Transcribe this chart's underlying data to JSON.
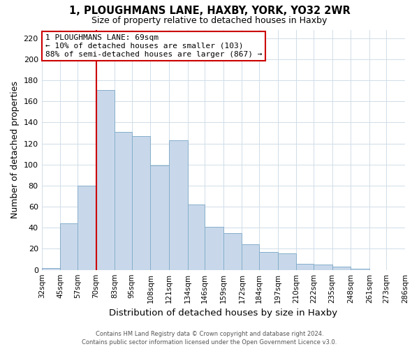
{
  "title": "1, PLOUGHMANS LANE, HAXBY, YORK, YO32 2WR",
  "subtitle": "Size of property relative to detached houses in Haxby",
  "xlabel": "Distribution of detached houses by size in Haxby",
  "ylabel": "Number of detached properties",
  "bar_values": [
    2,
    44,
    80,
    171,
    131,
    127,
    99,
    123,
    62,
    41,
    35,
    24,
    17,
    16,
    6,
    5,
    3,
    1
  ],
  "bin_edges": [
    32,
    45,
    57,
    70,
    83,
    95,
    108,
    121,
    134,
    146,
    159,
    172,
    184,
    197,
    210,
    222,
    235,
    248,
    261
  ],
  "bin_labels": [
    "32sqm",
    "45sqm",
    "57sqm",
    "70sqm",
    "83sqm",
    "95sqm",
    "108sqm",
    "121sqm",
    "134sqm",
    "146sqm",
    "159sqm",
    "172sqm",
    "184sqm",
    "197sqm",
    "210sqm",
    "222sqm",
    "235sqm",
    "248sqm",
    "261sqm",
    "273sqm",
    "286sqm"
  ],
  "all_tick_positions": [
    32,
    45,
    57,
    70,
    83,
    95,
    108,
    121,
    134,
    146,
    159,
    172,
    184,
    197,
    210,
    222,
    235,
    248,
    261,
    273,
    286
  ],
  "xlim_min": 32,
  "xlim_max": 286,
  "bar_color": "#c8d8ea",
  "bar_edge_color": "#85aecb",
  "property_line_x": 70,
  "property_line_color": "#cc0000",
  "annotation_title": "1 PLOUGHMANS LANE: 69sqm",
  "annotation_line1": "← 10% of detached houses are smaller (103)",
  "annotation_line2": "88% of semi-detached houses are larger (867) →",
  "annotation_box_color": "#ffffff",
  "annotation_box_edge": "#cc0000",
  "ylim": [
    0,
    228
  ],
  "yticks": [
    0,
    20,
    40,
    60,
    80,
    100,
    120,
    140,
    160,
    180,
    200,
    220
  ],
  "footer_line1": "Contains HM Land Registry data © Crown copyright and database right 2024.",
  "footer_line2": "Contains public sector information licensed under the Open Government Licence v3.0.",
  "background_color": "#ffffff",
  "grid_color": "#d0dde8"
}
